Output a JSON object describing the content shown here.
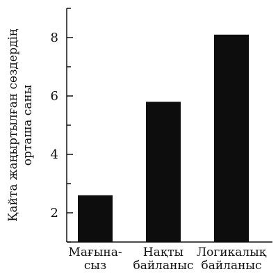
{
  "chart_data": {
    "type": "bar",
    "categories": [
      [
        "Мағына-",
        "сыз"
      ],
      [
        "Нақты",
        "байланыс"
      ],
      [
        "Логикалық",
        "байланыс"
      ]
    ],
    "values": [
      2.6,
      5.8,
      8.1
    ],
    "ylabel": [
      "Қайта жаңыртылған сөздердің",
      "орташа саны"
    ],
    "ylim": [
      1,
      9
    ],
    "yticks": [
      2,
      4,
      6,
      8
    ],
    "grid": false,
    "bar_color": "#0d0d0d",
    "axis_color": "#111111"
  }
}
